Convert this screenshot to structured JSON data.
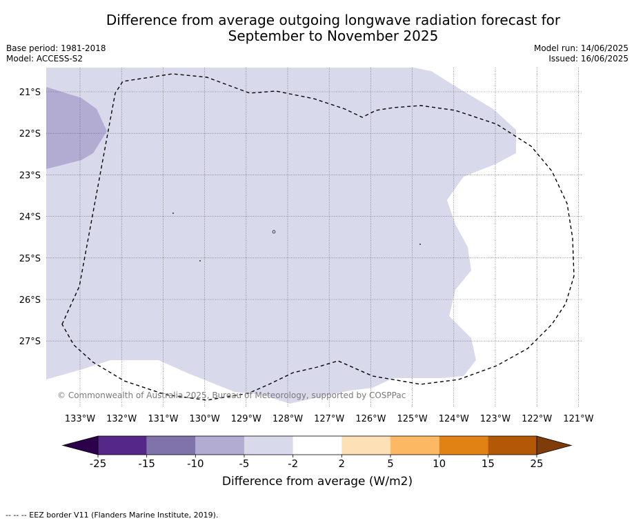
{
  "title_line1": "Difference from average outgoing longwave radiation forecast for",
  "title_line2": "September to November 2025",
  "base_period": "Base period: 1981-2018",
  "model": "Model: ACCESS-S2",
  "model_run": "Model run: 14/06/2025",
  "issued": "Issued: 16/06/2025",
  "copyright": "© Commonwealth of Australia 2025, Bureau of Meteorology, supported by COSPPac",
  "lat_labels": [
    "21°S",
    "22°S",
    "23°S",
    "24°S",
    "25°S",
    "26°S",
    "27°S"
  ],
  "lon_labels": [
    "133°W",
    "132°W",
    "131°W",
    "130°W",
    "129°W",
    "128°W",
    "127°W",
    "126°W",
    "125°W",
    "124°W",
    "123°W",
    "122°W",
    "121°W"
  ],
  "colorbar": {
    "label": "Difference from average (W/m2)",
    "ticks": [
      "-25",
      "-15",
      "-10",
      "-5",
      "-2",
      "2",
      "5",
      "10",
      "15",
      "25"
    ],
    "colors": {
      "below": "#2d004b",
      "bins": [
        "#542788",
        "#8073ac",
        "#b2abd2",
        "#d8daeb",
        "#ffffff",
        "#fee0b6",
        "#fdb863",
        "#e08214",
        "#b35806"
      ],
      "above": "#7f3b08"
    }
  },
  "footer": "--  --  -- EEZ border V11 (Flanders Marine Institute, 2019)."
}
